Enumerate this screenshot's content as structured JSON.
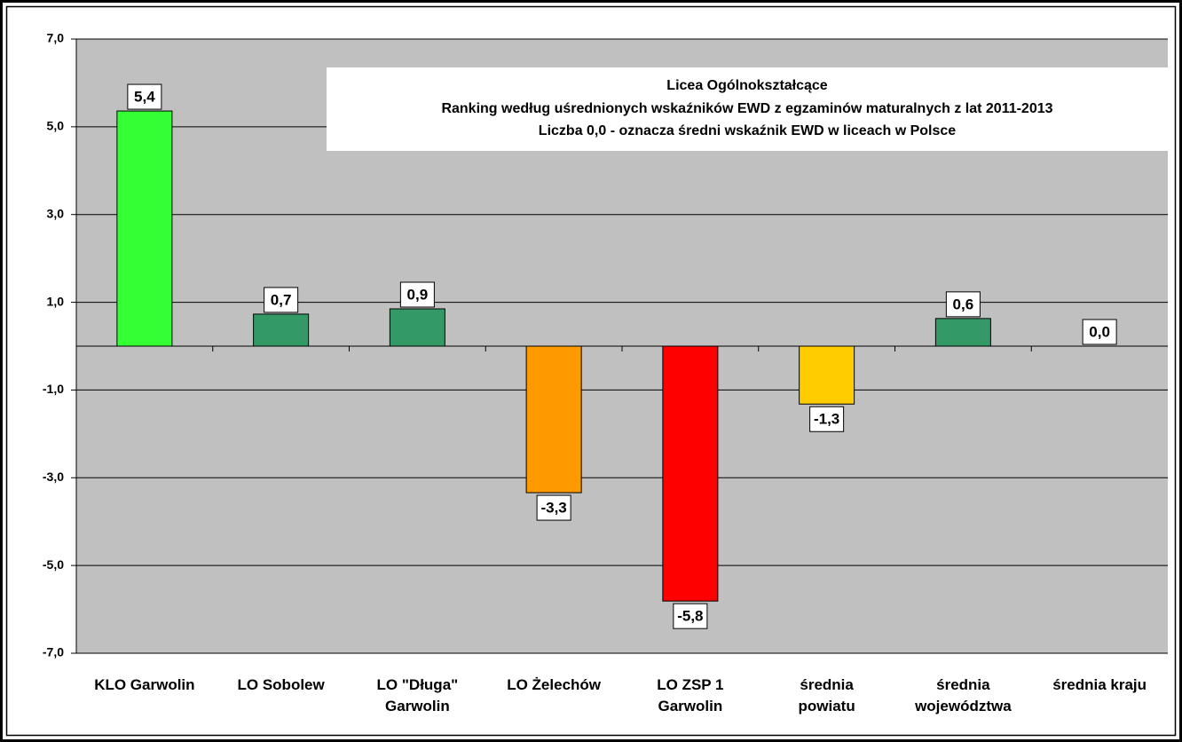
{
  "chart_data": {
    "type": "bar",
    "title": "Licea Ogólnokształcące",
    "subtitle": [
      "Ranking według uśrednionych wskaźników EWD z egzaminów maturalnych z lat 2011-2013",
      "Liczba 0,0 - oznacza średni wskaźnik EWD w liceach w Polsce"
    ],
    "categories": [
      "KLO Garwolin",
      "LO Sobolew",
      "LO \"Długa\"\nGarwolin",
      "LO Żelechów",
      "LO ZSP 1\nGarwolin",
      "średnia\npowiatu",
      "średnia\nwojewództwa",
      "średnia kraju"
    ],
    "values": [
      5.36,
      0.73,
      0.85,
      -3.34,
      -5.81,
      -1.32,
      0.63,
      0
    ],
    "value_labels": [
      "5,4",
      "0,7",
      "0,9",
      "-3,3",
      "-5,8",
      "-1,3",
      "0,6",
      "0,0"
    ],
    "colors": [
      "#33ff33",
      "#339966",
      "#339966",
      "#ff9900",
      "#ff0000",
      "#ffcc00",
      "#339966",
      "#339966"
    ],
    "ylim": [
      -7,
      7
    ],
    "yticks": [
      {
        "value": -7,
        "label": "-7,0"
      },
      {
        "value": -5,
        "label": "-5,0"
      },
      {
        "value": -3,
        "label": "-3,0"
      },
      {
        "value": -1,
        "label": "-1,0"
      },
      {
        "value": 1,
        "label": "1,0"
      },
      {
        "value": 3,
        "label": "3,0"
      },
      {
        "value": 5,
        "label": "5,0"
      },
      {
        "value": 7,
        "label": "7,0"
      }
    ],
    "grid": true
  }
}
